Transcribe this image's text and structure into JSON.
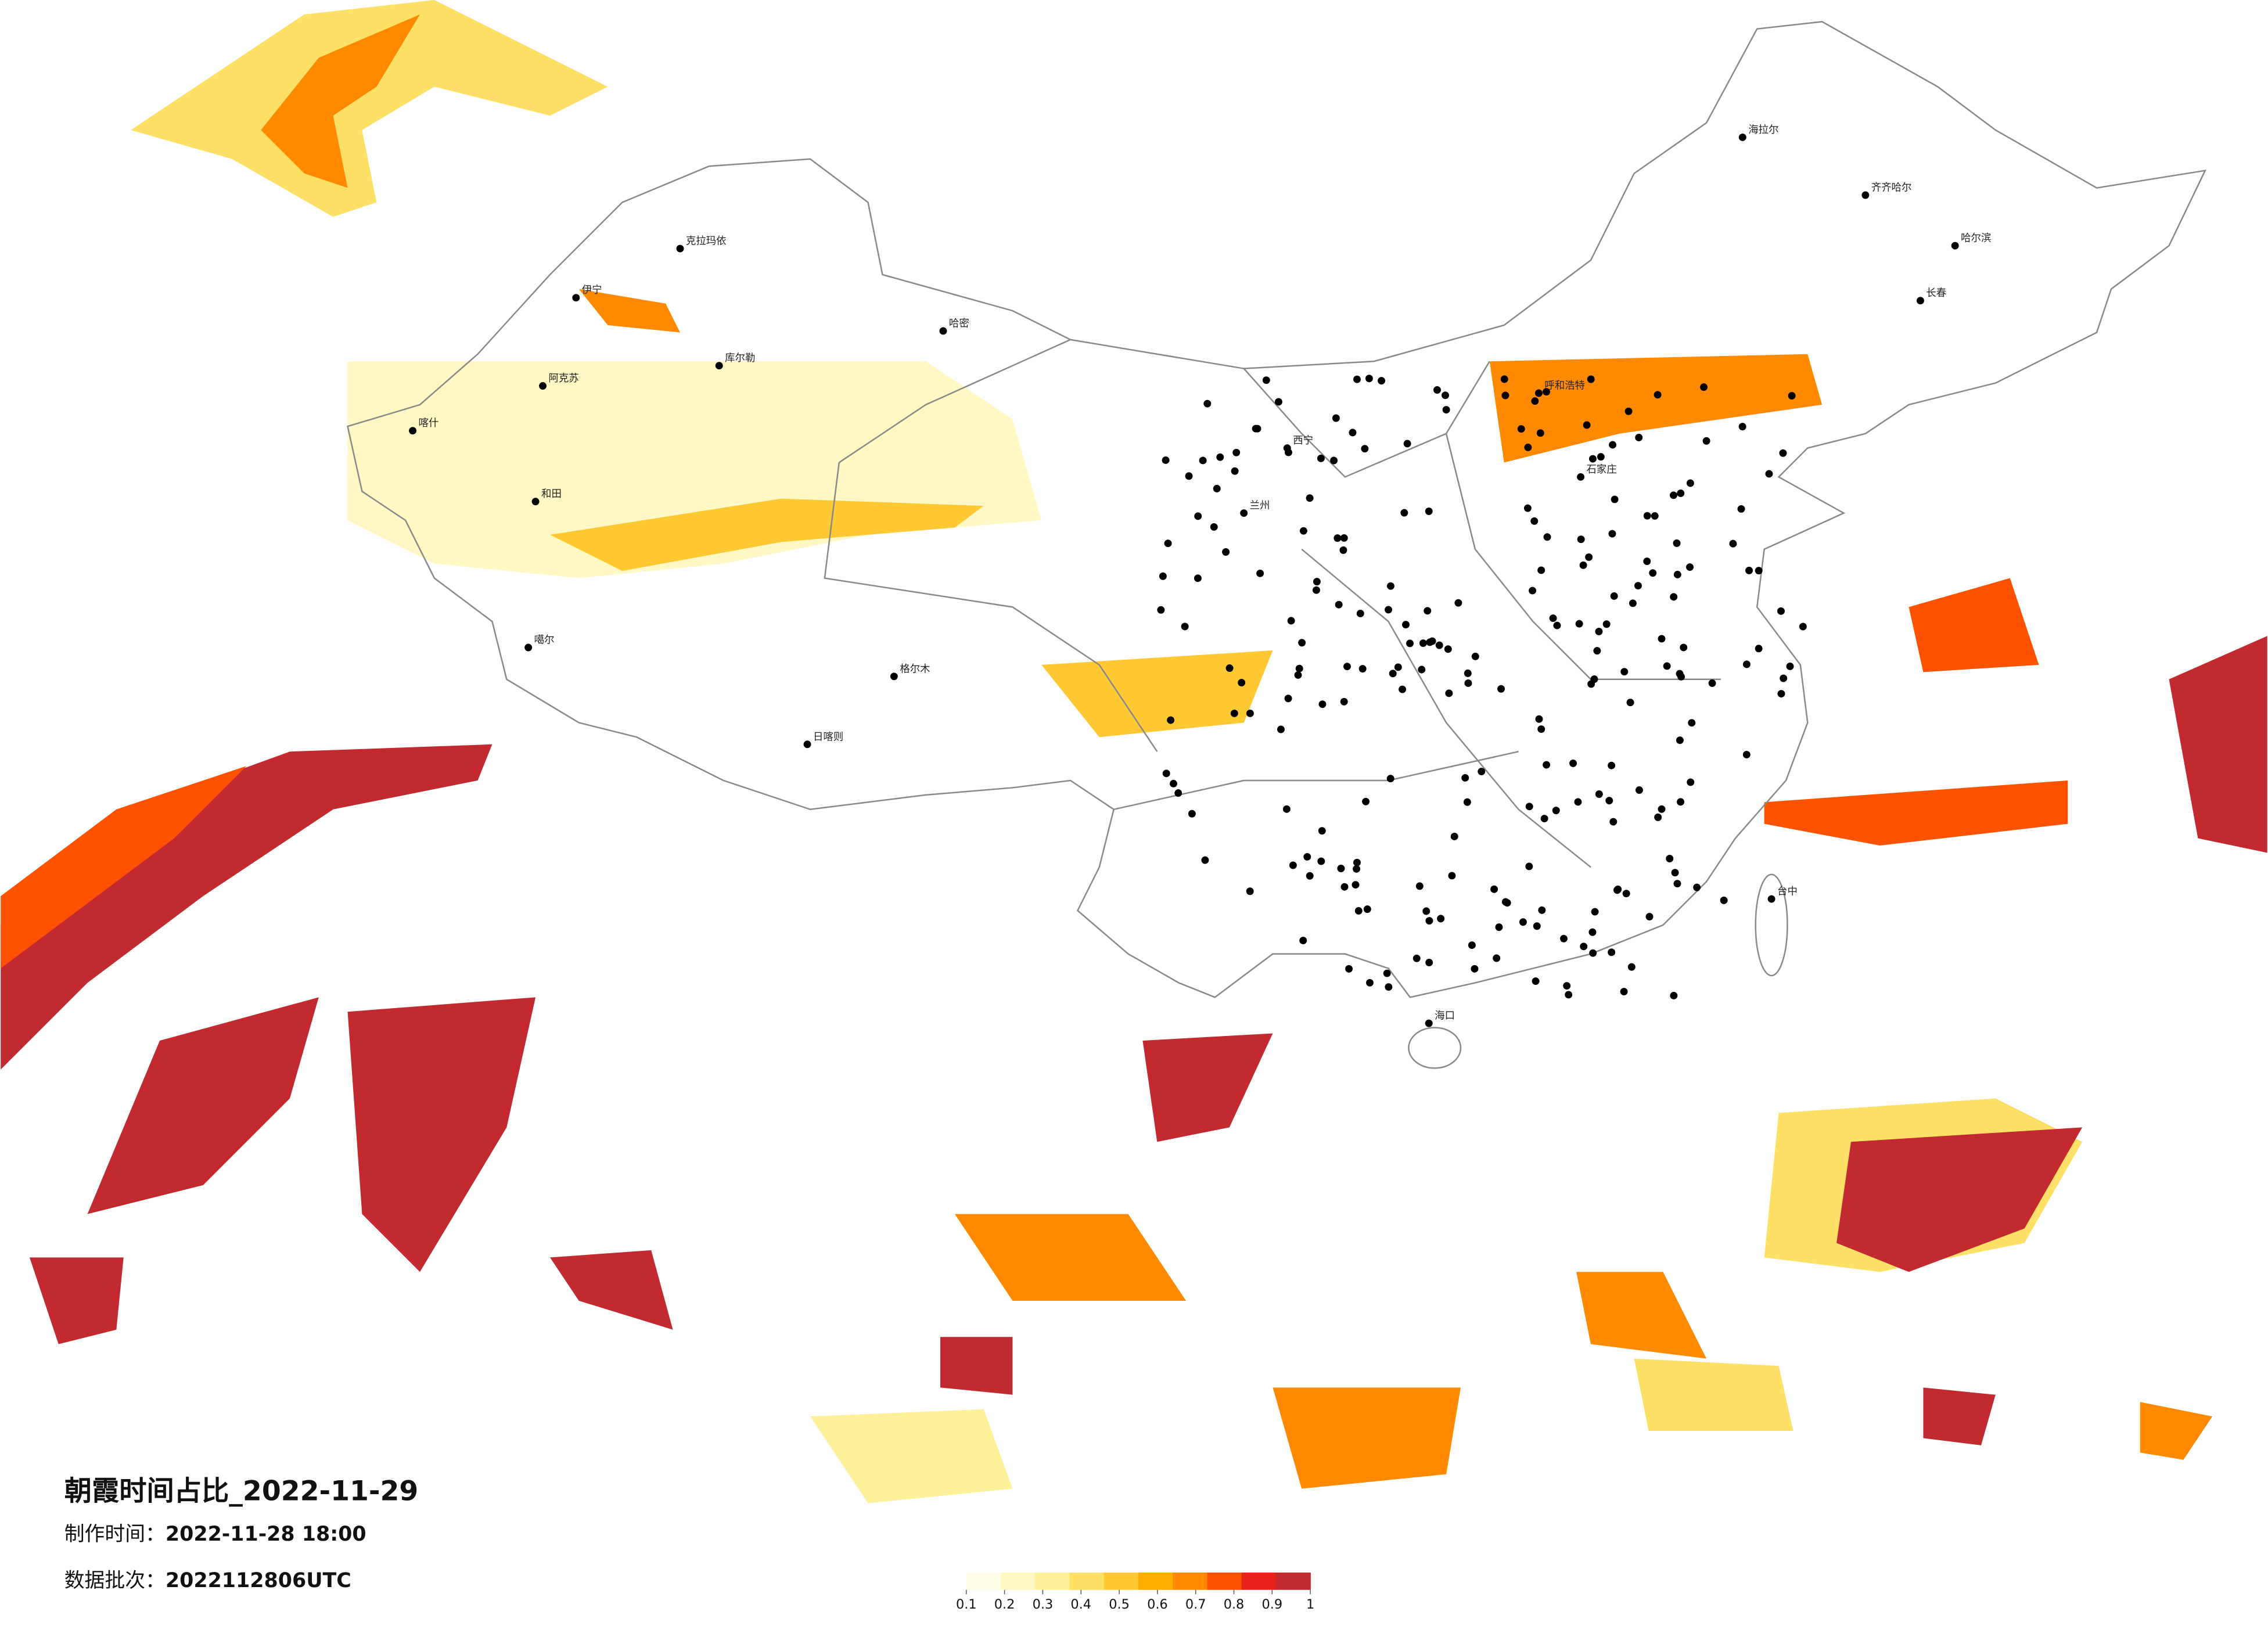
{
  "title": "朝霞时间占比_2022-11-29",
  "issue_time": {
    "label": "制作时间：",
    "value": "2022-11-28 18:00"
  },
  "batch": {
    "label": "数据批次：",
    "value": "2022112806UTC"
  },
  "legend": {
    "colors": [
      "#fffde6",
      "#fff8c4",
      "#fff09a",
      "#ffe066",
      "#ffc933",
      "#ffac00",
      "#ff8a00",
      "#ff5200",
      "#e8231e",
      "#c22a30"
    ],
    "ticks": [
      0.1,
      0.2,
      0.3,
      0.4,
      0.5,
      0.6,
      0.7,
      0.8,
      0.9,
      1
    ]
  },
  "cities": [
    "克拉玛依",
    "哈密",
    "和田",
    "喀什",
    "阿克苏",
    "库尔勒",
    "伊宁",
    "噶尔",
    "日喀则",
    "格尔木",
    "海拉尔",
    "齐齐哈尔",
    "哈尔滨",
    "长春",
    "呼和浩特",
    "石家庄",
    "西宁",
    "兰州",
    "台中",
    "海口"
  ]
}
